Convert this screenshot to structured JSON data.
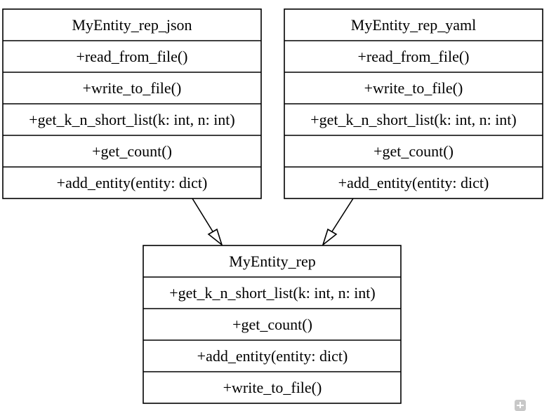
{
  "diagram": {
    "classes": [
      {
        "id": "json",
        "name": "MyEntity_rep_json",
        "methods": [
          "+read_from_file()",
          "+write_to_file()",
          "+get_k_n_short_list(k: int, n: int)",
          "+get_count()",
          "+add_entity(entity: dict)"
        ]
      },
      {
        "id": "yaml",
        "name": "MyEntity_rep_yaml",
        "methods": [
          "+read_from_file()",
          "+write_to_file()",
          "+get_k_n_short_list(k: int, n: int)",
          "+get_count()",
          "+add_entity(entity: dict)"
        ]
      },
      {
        "id": "base",
        "name": "MyEntity_rep",
        "methods": [
          "+get_k_n_short_list(k: int, n: int)",
          "+get_count()",
          "+add_entity(entity: dict)",
          "+write_to_file()"
        ]
      }
    ],
    "relations": [
      {
        "from": "json",
        "to": "base",
        "type": "inheritance"
      },
      {
        "from": "yaml",
        "to": "base",
        "type": "inheritance"
      }
    ]
  },
  "toolbar": {
    "zoom_icon": "zoom-in-icon"
  }
}
